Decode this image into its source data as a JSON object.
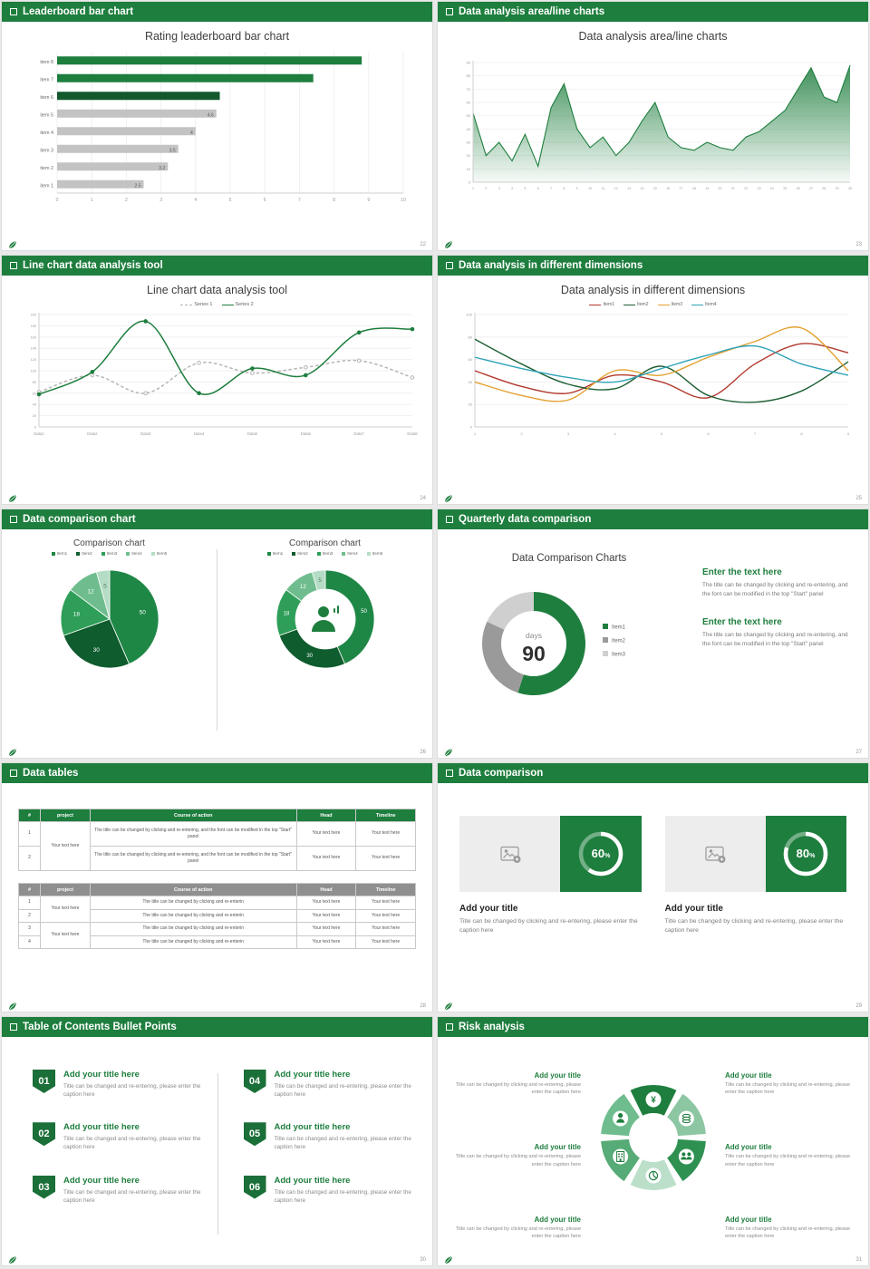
{
  "theme": {
    "green": "#1e7e3e",
    "green_dark": "#14592c",
    "gray_bar": "#c3c3c3"
  },
  "slides": [
    {
      "header": "Leaderboard bar chart",
      "page": "22",
      "title": "Rating leaderboard bar chart",
      "chart_data": {
        "type": "bar",
        "orientation": "horizontal",
        "categories": [
          "item 1",
          "item 2",
          "item 3",
          "item 4",
          "item 5",
          "item 6",
          "item 7",
          "item 8"
        ],
        "values": [
          2.5,
          3.2,
          3.5,
          4,
          4.6,
          4.7,
          7.4,
          8.8
        ],
        "bar_colors": [
          "#c3c3c3",
          "#c3c3c3",
          "#c3c3c3",
          "#c3c3c3",
          "#c3c3c3",
          "#14592c",
          "#1e7e3e",
          "#1e7e3e"
        ],
        "value_labels": [
          "2.5",
          "3.2",
          "3.5",
          "4",
          "4.6",
          "",
          "",
          ""
        ],
        "xlim": [
          0,
          10
        ],
        "xticks": [
          0,
          1,
          2,
          3,
          4,
          5,
          6,
          7,
          8,
          9,
          10
        ]
      }
    },
    {
      "header": "Data analysis area/line charts",
      "page": "23",
      "title": "Data analysis area/line charts",
      "chart_data": {
        "type": "area",
        "x": [
          1,
          2,
          3,
          4,
          5,
          6,
          7,
          8,
          9,
          10,
          11,
          12,
          13,
          14,
          15,
          16,
          17,
          18,
          19,
          20,
          21,
          22,
          23,
          24,
          25,
          26,
          27,
          28,
          29,
          30
        ],
        "values": [
          52,
          20,
          30,
          16,
          36,
          12,
          56,
          74,
          40,
          26,
          34,
          20,
          30,
          46,
          60,
          34,
          26,
          24,
          30,
          26,
          24,
          34,
          38,
          46,
          54,
          70,
          86,
          64,
          60,
          88
        ],
        "ylim": [
          0,
          90
        ],
        "yticks": [
          0,
          10,
          20,
          30,
          40,
          50,
          60,
          70,
          80,
          90
        ]
      }
    },
    {
      "header": "Line chart data analysis tool",
      "page": "24",
      "title": "Line chart data analysis tool",
      "chart_data": {
        "type": "line",
        "categories": [
          "Data1",
          "Data2",
          "Data3",
          "Data4",
          "Data5",
          "Data6",
          "Data7",
          "Data8"
        ],
        "series": [
          {
            "name": "Series 1",
            "color": "#b5b5b5",
            "dashed": true,
            "values": [
              62,
              92,
              60,
              114,
              96,
              106,
              118,
              88
            ]
          },
          {
            "name": "Series 2",
            "color": "#1e7e3e",
            "dashed": false,
            "values": [
              58,
              98,
              188,
              60,
              104,
              92,
              168,
              174
            ]
          }
        ],
        "ylim": [
          0,
          200
        ],
        "yticks": [
          0,
          20,
          40,
          60,
          80,
          100,
          120,
          140,
          160,
          180,
          200
        ]
      }
    },
    {
      "header": "Data analysis in different dimensions",
      "page": "25",
      "title": "Data analysis in different dimensions",
      "chart_data": {
        "type": "line",
        "x": [
          1,
          2,
          3,
          4,
          5,
          6,
          7,
          8,
          9
        ],
        "series": [
          {
            "name": "Item1",
            "color": "#b23a2e",
            "dashed": false,
            "values": [
              50,
              36,
              30,
              46,
              40,
              26,
              56,
              74,
              66
            ]
          },
          {
            "name": "Item2",
            "color": "#1d5e33",
            "dashed": false,
            "values": [
              78,
              56,
              38,
              34,
              54,
              28,
              22,
              32,
              58
            ]
          },
          {
            "name": "Item3",
            "color": "#e3a02f",
            "dashed": false,
            "values": [
              40,
              28,
              24,
              50,
              46,
              62,
              76,
              88,
              50
            ]
          },
          {
            "name": "Item4",
            "color": "#2fa3b8",
            "dashed": false,
            "values": [
              62,
              52,
              44,
              40,
              52,
              64,
              72,
              56,
              46
            ]
          }
        ],
        "ylim": [
          0,
          100
        ],
        "yticks": [
          0,
          20,
          40,
          60,
          80,
          100
        ]
      }
    },
    {
      "header": "Data comparison chart",
      "page": "26",
      "charts": [
        {
          "title": "Comparison chart",
          "type": "pie",
          "legend": [
            "Item1",
            "Item2",
            "Item3",
            "Item4",
            "Item5"
          ],
          "values": [
            50,
            30,
            18,
            12,
            5
          ],
          "colors": [
            "#1f8746",
            "#0f5c2e",
            "#2e9e58",
            "#6fbd8e",
            "#b5dcc4"
          ],
          "label_colors": [
            "#fff",
            "#fff",
            "#fff",
            "#fff",
            "#5a7a66"
          ]
        },
        {
          "title": "Comparison chart",
          "type": "donut",
          "legend": [
            "Item1",
            "Item2",
            "Item3",
            "Item4",
            "Item5"
          ],
          "values": [
            50,
            30,
            18,
            12,
            5
          ],
          "colors": [
            "#1f8746",
            "#0f5c2e",
            "#2e9e58",
            "#6fbd8e",
            "#b5dcc4"
          ],
          "label_colors": [
            "#fff",
            "#fff",
            "#fff",
            "#fff",
            "#5a7a66"
          ],
          "center_icon": "person-icon"
        }
      ]
    },
    {
      "header": "Quarterly data comparison",
      "page": "27",
      "title": "Data Comparison Charts",
      "chart_data": {
        "type": "donut",
        "center_label": "days",
        "center_value": "90",
        "segments": [
          {
            "name": "Item1",
            "value": 55,
            "color": "#1e7e3e"
          },
          {
            "name": "Item2",
            "value": 27,
            "color": "#9a9a9a"
          },
          {
            "name": "Item3",
            "value": 18,
            "color": "#cfcfcf"
          }
        ]
      },
      "blocks": [
        {
          "heading": "Enter the text here",
          "body": "The title can be changed by clicking and re-entering, and the font can be modified in the top \"Start\" panel"
        },
        {
          "heading": "Enter the text here",
          "body": "The title can be changed by clicking and re-entering, and the font can be modified in the top \"Start\" panel"
        }
      ]
    },
    {
      "header": "Data tables",
      "page": "28",
      "tables": [
        {
          "header_bg": "#1e7e3e",
          "columns": [
            "#",
            "project",
            "Course of action",
            "Head",
            "Timeline"
          ],
          "merged_project": "Your text here",
          "rows": [
            {
              "num": "1",
              "course": "The title can be changed by clicking and re-entering, and the font can be modified in the top \"Start\" panel",
              "head": "Your text here",
              "timeline": "Your text here"
            },
            {
              "num": "2",
              "course": "The title can be changed by clicking and re-entering, and the font can be modified in the top \"Start\" panel",
              "head": "Your text here",
              "timeline": "Your text here"
            }
          ]
        },
        {
          "header_bg": "#8f8f8f",
          "columns": [
            "#",
            "project",
            "Course of action",
            "Head",
            "Timeline"
          ],
          "merged_project": "Your text here",
          "rows": [
            {
              "num": "1",
              "course": "The title can be changed by clicking and re-enterin",
              "head": "Your text here",
              "timeline": "Your text here"
            },
            {
              "num": "2",
              "course": "The title can be changed by clicking and re-enterin",
              "head": "Your text here",
              "timeline": "Your text here"
            },
            {
              "num": "3",
              "course": "The title can be changed by clicking and re-enterin",
              "head": "Your text here",
              "timeline": "Your text here"
            },
            {
              "num": "4",
              "course": "The title can be changed by clicking and re-enterin",
              "head": "Your text here",
              "timeline": "Your text here"
            }
          ]
        }
      ]
    },
    {
      "header": "Data comparison",
      "page": "29",
      "cards": [
        {
          "percent": 60,
          "title": "Add your title",
          "caption": "Title can be changed by clicking and re-entering, please enter the caption here"
        },
        {
          "percent": 80,
          "title": "Add your title",
          "caption": "Title can be changed by clicking and re-entering, please enter the caption here"
        }
      ]
    },
    {
      "header": "Table of Contents Bullet Points",
      "page": "30",
      "items": [
        {
          "num": "01",
          "title": "Add your title here",
          "caption": "Title can be changed and re-entering, please enter the caption here"
        },
        {
          "num": "02",
          "title": "Add your title here",
          "caption": "Title can be changed and re-entering, please enter the caption here"
        },
        {
          "num": "03",
          "title": "Add your title here",
          "caption": "Title can be changed and re-entering, please enter the caption here"
        },
        {
          "num": "04",
          "title": "Add your title here",
          "caption": "Title can be changed and re-entering, please enter the caption here"
        },
        {
          "num": "05",
          "title": "Add your title here",
          "caption": "Title can be changed and re-entering, please enter the caption here"
        },
        {
          "num": "06",
          "title": "Add your title here",
          "caption": "Title can be changed and re-entering, please enter the caption here"
        }
      ]
    },
    {
      "header": "Risk analysis",
      "page": "31",
      "icons": [
        "money-icon",
        "coins-icon",
        "people-icon",
        "pie-chart-icon",
        "building-icon",
        "person-icon"
      ],
      "left_blocks": [
        {
          "title": "Add your title",
          "caption": "Title can be changed by clicking and re-entering, please enter the caption here"
        },
        {
          "title": "Add your title",
          "caption": "Title can be changed by clicking and re-entering, please enter the caption here"
        },
        {
          "title": "Add your title",
          "caption": "Title can be changed by clicking and re-entering, please enter the caption here"
        }
      ],
      "right_blocks": [
        {
          "title": "Add your title",
          "caption": "Title can be changed by clicking and re-entering, please enter the caption here"
        },
        {
          "title": "Add your title",
          "caption": "Title can be changed by clicking and re-entering, please enter the caption here"
        },
        {
          "title": "Add your title",
          "caption": "Title can be changed by clicking and re-entering, please enter the caption here"
        }
      ]
    }
  ]
}
